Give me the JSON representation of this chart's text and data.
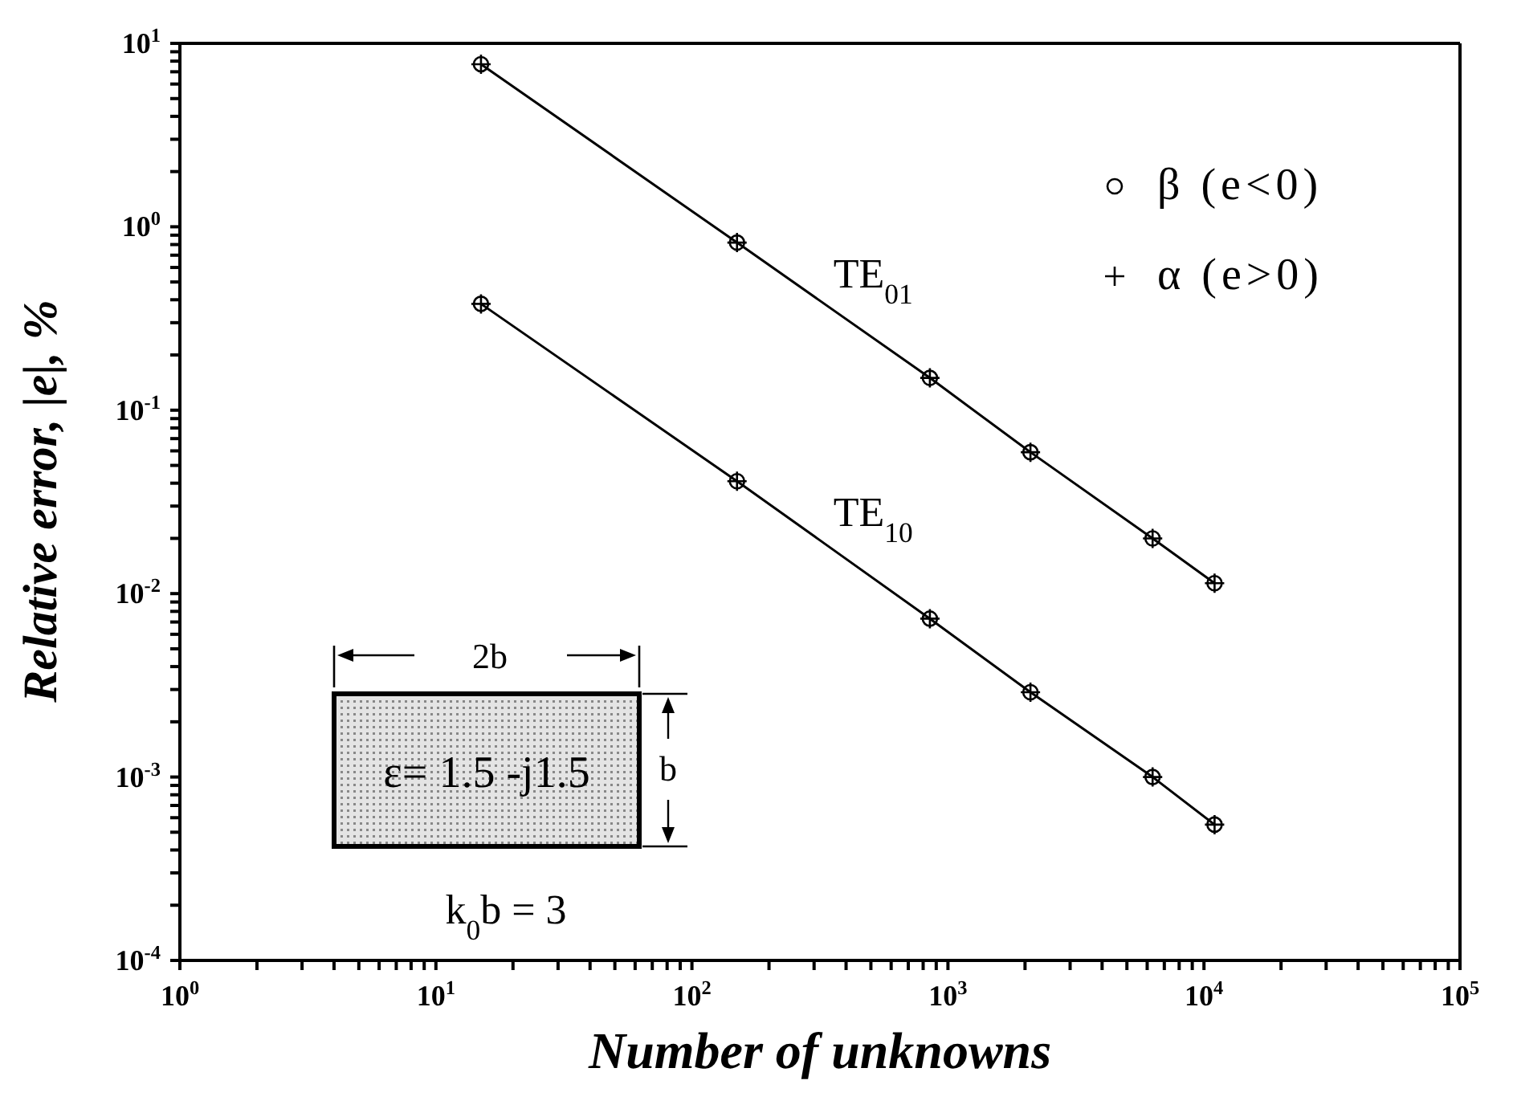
{
  "chart_data": {
    "type": "line",
    "xlabel": "Number of unknowns",
    "ylabel": "Relative error, |e|, %",
    "log": "xy",
    "grid": false,
    "legend": "top right",
    "xlim": [
      1,
      100000
    ],
    "xticks": [
      {
        "value": 1,
        "label": "10$^{0}$"
      },
      {
        "value": 2,
        "label": null
      },
      {
        "value": 3,
        "label": null
      },
      {
        "value": 4,
        "label": null
      },
      {
        "value": 5,
        "label": null
      },
      {
        "value": 6,
        "label": null
      },
      {
        "value": 7,
        "label": null
      },
      {
        "value": 8,
        "label": null
      },
      {
        "value": 9,
        "label": null
      },
      {
        "value": 10,
        "label": "10$^{1}$"
      },
      {
        "value": 20,
        "label": null
      },
      {
        "value": 30,
        "label": null
      },
      {
        "value": 40,
        "label": null
      },
      {
        "value": 50,
        "label": null
      },
      {
        "value": 60,
        "label": null
      },
      {
        "value": 70,
        "label": null
      },
      {
        "value": 80,
        "label": null
      },
      {
        "value": 90,
        "label": null
      },
      {
        "value": 100,
        "label": "10$^{2}$"
      },
      {
        "value": 200,
        "label": null
      },
      {
        "value": 300,
        "label": null
      },
      {
        "value": 400,
        "label": null
      },
      {
        "value": 500,
        "label": null
      },
      {
        "value": 600,
        "label": null
      },
      {
        "value": 700,
        "label": null
      },
      {
        "value": 800,
        "label": null
      },
      {
        "value": 900,
        "label": null
      },
      {
        "value": 1000,
        "label": "10$^{3}$"
      },
      {
        "value": 2000,
        "label": null
      },
      {
        "value": 3000,
        "label": null
      },
      {
        "value": 4000,
        "label": null
      },
      {
        "value": 5000,
        "label": null
      },
      {
        "value": 6000,
        "label": null
      },
      {
        "value": 7000,
        "label": null
      },
      {
        "value": 8000,
        "label": null
      },
      {
        "value": 9000,
        "label": null
      },
      {
        "value": 10000,
        "label": "10$^{4}$"
      },
      {
        "value": 20000,
        "label": null
      },
      {
        "value": 30000,
        "label": null
      },
      {
        "value": 40000,
        "label": null
      },
      {
        "value": 50000,
        "label": null
      },
      {
        "value": 60000,
        "label": null
      },
      {
        "value": 70000,
        "label": null
      },
      {
        "value": 80000,
        "label": null
      },
      {
        "value": 90000,
        "label": null
      },
      {
        "value": 100000,
        "label": "10$^{5}$"
      }
    ],
    "ylim": [
      0.0001,
      10
    ],
    "yticks": [
      {
        "value": 0.0001,
        "label": "10$^{-4}$"
      },
      {
        "value": 0.0002,
        "label": null
      },
      {
        "value": 0.0003,
        "label": null
      },
      {
        "value": 0.0004,
        "label": null
      },
      {
        "value": 0.0005,
        "label": null
      },
      {
        "value": 0.0006,
        "label": null
      },
      {
        "value": 0.0007,
        "label": null
      },
      {
        "value": 0.0008,
        "label": null
      },
      {
        "value": 0.0009,
        "label": null
      },
      {
        "value": 0.001,
        "label": "10$^{-3}$"
      },
      {
        "value": 0.002,
        "label": null
      },
      {
        "value": 0.003,
        "label": null
      },
      {
        "value": 0.004,
        "label": null
      },
      {
        "value": 0.005,
        "label": null
      },
      {
        "value": 0.006,
        "label": null
      },
      {
        "value": 0.007,
        "label": null
      },
      {
        "value": 0.008,
        "label": null
      },
      {
        "value": 0.009,
        "label": null
      },
      {
        "value": 0.01,
        "label": "10$^{-2}$"
      },
      {
        "value": 0.02,
        "label": null
      },
      {
        "value": 0.03,
        "label": null
      },
      {
        "value": 0.04,
        "label": null
      },
      {
        "value": 0.05,
        "label": null
      },
      {
        "value": 0.06,
        "label": null
      },
      {
        "value": 0.07,
        "label": null
      },
      {
        "value": 0.08,
        "label": null
      },
      {
        "value": 0.09,
        "label": null
      },
      {
        "value": 0.1,
        "label": "10$^{-1}$"
      },
      {
        "value": 0.2,
        "label": null
      },
      {
        "value": 0.3,
        "label": null
      },
      {
        "value": 0.4,
        "label": null
      },
      {
        "value": 0.5,
        "label": null
      },
      {
        "value": 0.6,
        "label": null
      },
      {
        "value": 0.7,
        "label": null
      },
      {
        "value": 0.8,
        "label": null
      },
      {
        "value": 0.9,
        "label": null
      },
      {
        "value": 1,
        "label": "10$^{0}$"
      },
      {
        "value": 2,
        "label": null
      },
      {
        "value": 3,
        "label": null
      },
      {
        "value": 4,
        "label": null
      },
      {
        "value": 5,
        "label": null
      },
      {
        "value": 6,
        "label": null
      },
      {
        "value": 7,
        "label": null
      },
      {
        "value": 8,
        "label": null
      },
      {
        "value": 9,
        "label": null
      },
      {
        "value": 10,
        "label": "10$^{1}$"
      }
    ],
    "series": [
      {
        "name": "TE$_{01}$",
        "marker": "none",
        "color": "#000000",
        "x": [
          15,
          150,
          850,
          2100,
          6300,
          11000
        ],
        "values": [
          7.7,
          0.82,
          0.15,
          0.059,
          0.02,
          0.0114
        ]
      },
      {
        "name": "TE$_{10}$",
        "marker": "none",
        "color": "#000000",
        "x": [
          15,
          150,
          850,
          2100,
          6300,
          11000
        ],
        "values": [
          0.38,
          0.041,
          0.0073,
          0.0029,
          0.001,
          0.00055
        ]
      },
      {
        "name": "β (e<0)",
        "type": "scatter",
        "marker": "circle",
        "color": "#000000",
        "x": [
          15,
          150,
          850,
          2100,
          6300,
          11000,
          15,
          150,
          850,
          2100,
          6300,
          11000
        ],
        "values": [
          7.7,
          0.82,
          0.15,
          0.059,
          0.02,
          0.0114,
          0.38,
          0.041,
          0.0073,
          0.0029,
          0.001,
          0.00055
        ]
      },
      {
        "name": "α (e>0)",
        "type": "scatter",
        "marker": "cross",
        "color": "#000000",
        "x": [
          15,
          150,
          850,
          2100,
          6300,
          11000,
          15,
          150,
          850,
          2100,
          6300,
          11000
        ],
        "values": [
          7.7,
          0.82,
          0.15,
          0.059,
          0.02,
          0.0114,
          0.38,
          0.041,
          0.0073,
          0.0029,
          0.001,
          0.00055
        ]
      }
    ],
    "annotations": [
      "2b",
      "b",
      "ε= 1.5 -j1.5",
      "k$_{0}$b = 3"
    ]
  }
}
